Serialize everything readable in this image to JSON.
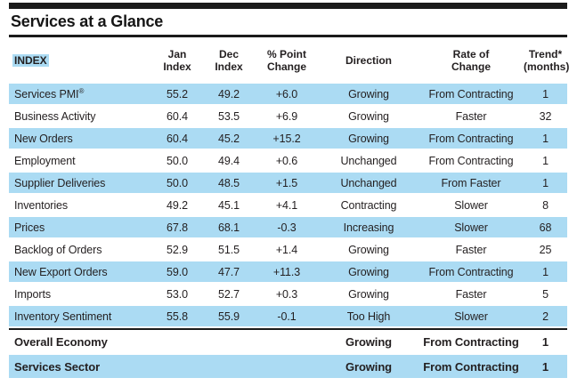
{
  "title": "Services at a Glance",
  "colors": {
    "row_highlight": "#ABDBF3",
    "text": "#231F20",
    "rule": "#1B1B1B"
  },
  "table": {
    "columns": [
      {
        "key": "index",
        "label": "INDEX"
      },
      {
        "key": "jan",
        "label": "Jan\nIndex"
      },
      {
        "key": "dec",
        "label": "Dec\nIndex"
      },
      {
        "key": "change",
        "label": "% Point\nChange"
      },
      {
        "key": "direction",
        "label": "Direction"
      },
      {
        "key": "rate",
        "label": "Rate of\nChange"
      },
      {
        "key": "trend",
        "label": "Trend*\n(months)"
      }
    ],
    "rows": [
      {
        "index": "Services PMI®",
        "jan": "55.2",
        "dec": "49.2",
        "change": "+6.0",
        "direction": "Growing",
        "rate": "From Contracting",
        "trend": "1",
        "shaded": true,
        "bold": false,
        "divider_above": false
      },
      {
        "index": "Business Activity",
        "jan": "60.4",
        "dec": "53.5",
        "change": "+6.9",
        "direction": "Growing",
        "rate": "Faster",
        "trend": "32",
        "shaded": false,
        "bold": false,
        "divider_above": false
      },
      {
        "index": "New Orders",
        "jan": "60.4",
        "dec": "45.2",
        "change": "+15.2",
        "direction": "Growing",
        "rate": "From Contracting",
        "trend": "1",
        "shaded": true,
        "bold": false,
        "divider_above": false
      },
      {
        "index": "Employment",
        "jan": "50.0",
        "dec": "49.4",
        "change": "+0.6",
        "direction": "Unchanged",
        "rate": "From Contracting",
        "trend": "1",
        "shaded": false,
        "bold": false,
        "divider_above": false
      },
      {
        "index": "Supplier Deliveries",
        "jan": "50.0",
        "dec": "48.5",
        "change": "+1.5",
        "direction": "Unchanged",
        "rate": "From Faster",
        "trend": "1",
        "shaded": true,
        "bold": false,
        "divider_above": false
      },
      {
        "index": "Inventories",
        "jan": "49.2",
        "dec": "45.1",
        "change": "+4.1",
        "direction": "Contracting",
        "rate": "Slower",
        "trend": "8",
        "shaded": false,
        "bold": false,
        "divider_above": false
      },
      {
        "index": "Prices",
        "jan": "67.8",
        "dec": "68.1",
        "change": "-0.3",
        "direction": "Increasing",
        "rate": "Slower",
        "trend": "68",
        "shaded": true,
        "bold": false,
        "divider_above": false
      },
      {
        "index": "Backlog of Orders",
        "jan": "52.9",
        "dec": "51.5",
        "change": "+1.4",
        "direction": "Growing",
        "rate": "Faster",
        "trend": "25",
        "shaded": false,
        "bold": false,
        "divider_above": false
      },
      {
        "index": "New Export Orders",
        "jan": "59.0",
        "dec": "47.7",
        "change": "+11.3",
        "direction": "Growing",
        "rate": "From Contracting",
        "trend": "1",
        "shaded": true,
        "bold": false,
        "divider_above": false
      },
      {
        "index": "Imports",
        "jan": "53.0",
        "dec": "52.7",
        "change": "+0.3",
        "direction": "Growing",
        "rate": "Faster",
        "trend": "5",
        "shaded": false,
        "bold": false,
        "divider_above": false
      },
      {
        "index": "Inventory Sentiment",
        "jan": "55.8",
        "dec": "55.9",
        "change": "-0.1",
        "direction": "Too High",
        "rate": "Slower",
        "trend": "2",
        "shaded": true,
        "bold": false,
        "divider_above": false
      },
      {
        "index": "Overall Economy",
        "jan": "",
        "dec": "",
        "change": "",
        "direction": "Growing",
        "rate": "From Contracting",
        "trend": "1",
        "shaded": false,
        "bold": true,
        "divider_above": true
      },
      {
        "index": "Services Sector",
        "jan": "",
        "dec": "",
        "change": "",
        "direction": "Growing",
        "rate": "From Contracting",
        "trend": "1",
        "shaded": true,
        "bold": true,
        "divider_above": false
      }
    ]
  }
}
